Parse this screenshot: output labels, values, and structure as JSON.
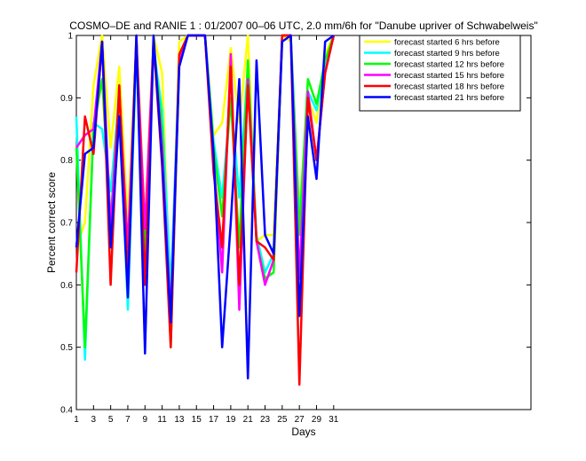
{
  "chart_data": {
    "type": "line",
    "title": "COSMO–DE and RANIE 1 : 01/2007 00–06 UTC, 2.0 mm/6h for \"Danube upriver of Schwabelweis\"",
    "xlabel": "Days",
    "ylabel": "Percent correct score",
    "xlim": [
      1,
      54
    ],
    "ylim": [
      0.4,
      1.0
    ],
    "x_ticks": [
      1,
      3,
      5,
      7,
      9,
      11,
      13,
      15,
      17,
      19,
      21,
      23,
      25,
      27,
      29,
      31
    ],
    "y_ticks": [
      0.4,
      0.5,
      0.6,
      0.7,
      0.8,
      0.9,
      1
    ],
    "grid": false,
    "legend_position": "top-right",
    "x": [
      1,
      2,
      3,
      4,
      5,
      6,
      7,
      8,
      9,
      10,
      11,
      12,
      13,
      14,
      15,
      16,
      17,
      18,
      19,
      20,
      21,
      22,
      23,
      24,
      25,
      26,
      27,
      28,
      29,
      30,
      31
    ],
    "series": [
      {
        "name": "forecast started 6 hrs before",
        "color": "#ffff00",
        "values": [
          0.66,
          0.7,
          0.92,
          1.0,
          0.82,
          0.95,
          0.7,
          1.0,
          0.7,
          1.0,
          0.94,
          0.56,
          0.99,
          1.0,
          1.0,
          1.0,
          0.84,
          0.86,
          0.98,
          0.86,
          1.0,
          0.67,
          0.68,
          0.68,
          1.0,
          0.99,
          0.72,
          0.9,
          0.86,
          0.97,
          1.0
        ]
      },
      {
        "name": "forecast started 9 hrs before",
        "color": "#00ffff",
        "values": [
          0.87,
          0.48,
          0.86,
          0.85,
          0.75,
          0.9,
          0.56,
          0.98,
          0.62,
          0.98,
          0.88,
          0.59,
          0.96,
          1.0,
          1.0,
          1.0,
          0.83,
          0.74,
          0.9,
          0.74,
          0.95,
          0.68,
          0.62,
          0.65,
          1.0,
          1.0,
          0.7,
          0.91,
          0.88,
          0.95,
          1.0
        ]
      },
      {
        "name": "forecast started 12 hrs before",
        "color": "#00ff00",
        "values": [
          0.82,
          0.5,
          0.85,
          0.93,
          0.7,
          0.92,
          0.58,
          0.99,
          0.66,
          0.99,
          0.85,
          0.5,
          0.96,
          1.0,
          1.0,
          1.0,
          0.82,
          0.71,
          0.9,
          0.66,
          0.96,
          0.67,
          0.61,
          0.62,
          1.0,
          1.0,
          0.68,
          0.93,
          0.89,
          0.96,
          1.0
        ]
      },
      {
        "name": "forecast started 15 hrs before",
        "color": "#ff00ff",
        "values": [
          0.82,
          0.84,
          0.85,
          0.99,
          0.69,
          0.91,
          0.66,
          0.99,
          0.69,
          0.99,
          0.82,
          0.55,
          0.96,
          1.0,
          1.0,
          1.0,
          0.8,
          0.62,
          0.97,
          0.56,
          0.93,
          0.67,
          0.6,
          0.64,
          1.0,
          1.0,
          0.61,
          0.91,
          0.8,
          0.94,
          1.0
        ]
      },
      {
        "name": "forecast started 18 hrs before",
        "color": "#ff0000",
        "values": [
          0.62,
          0.87,
          0.81,
          0.99,
          0.6,
          0.92,
          0.61,
          1.0,
          0.6,
          0.99,
          0.79,
          0.5,
          0.97,
          1.0,
          1.0,
          1.0,
          0.78,
          0.66,
          0.95,
          0.6,
          0.92,
          0.67,
          0.66,
          0.64,
          1.0,
          1.0,
          0.44,
          0.9,
          0.8,
          0.94,
          1.0
        ]
      },
      {
        "name": "forecast started 21 hrs before",
        "color": "#0000ff",
        "values": [
          0.66,
          0.81,
          0.82,
          0.99,
          0.66,
          0.87,
          0.58,
          1.0,
          0.49,
          1.0,
          0.8,
          0.54,
          0.95,
          1.0,
          1.0,
          1.0,
          0.81,
          0.5,
          0.7,
          0.93,
          0.45,
          0.96,
          0.68,
          0.65,
          0.99,
          1.0,
          0.55,
          0.87,
          0.77,
          0.99,
          1.0
        ]
      }
    ]
  }
}
